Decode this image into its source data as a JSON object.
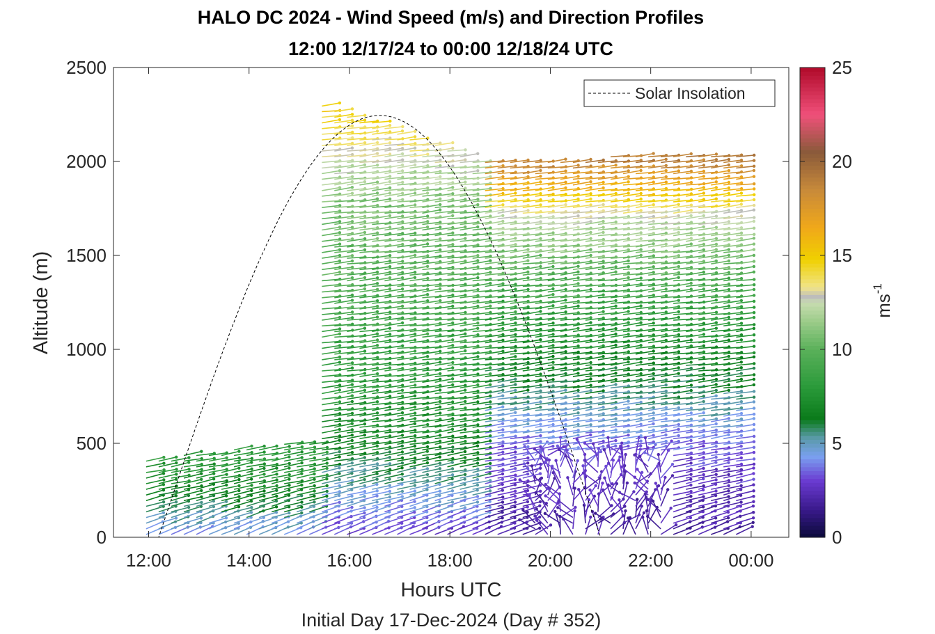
{
  "chart_data": {
    "type": "wind-barb profile",
    "title": "HALO DC 2024 - Wind Speed (m/s) and Direction Profiles",
    "subtitle": "12:00 12/17/24 to 00:00 12/18/24  UTC",
    "xlabel": "Hours UTC",
    "x_note": "Initial Day 17-Dec-2024 (Day # 352)",
    "ylabel": "Altitude (m)",
    "x_ticks": [
      "12:00",
      "14:00",
      "16:00",
      "18:00",
      "20:00",
      "22:00",
      "00:00"
    ],
    "x_tick_hours": [
      12,
      14,
      16,
      18,
      20,
      22,
      24
    ],
    "xlim_hours": [
      11.3,
      24.75
    ],
    "y_ticks": [
      0,
      500,
      1000,
      1500,
      2000,
      2500
    ],
    "ylim": [
      0,
      2500
    ],
    "colorbar": {
      "label": "ms",
      "label_sup": "-1",
      "ticks": [
        0,
        5,
        10,
        15,
        20,
        25
      ],
      "range": [
        0,
        25
      ],
      "stops": [
        {
          "v": 0,
          "c": "#0a0a3a"
        },
        {
          "v": 1.5,
          "c": "#3a1a8c"
        },
        {
          "v": 3,
          "c": "#6a3ad0"
        },
        {
          "v": 4.3,
          "c": "#7aa0f0"
        },
        {
          "v": 5.3,
          "c": "#5a9aa8"
        },
        {
          "v": 6.3,
          "c": "#0a7a1a"
        },
        {
          "v": 8,
          "c": "#2a9a3a"
        },
        {
          "v": 10,
          "c": "#5ab05a"
        },
        {
          "v": 11.5,
          "c": "#9ccc8a"
        },
        {
          "v": 12.5,
          "c": "#c8dcb0"
        },
        {
          "v": 12.8,
          "c": "#bcbcbc"
        },
        {
          "v": 13.3,
          "c": "#f0e48a"
        },
        {
          "v": 14.8,
          "c": "#f0d000"
        },
        {
          "v": 16.5,
          "c": "#f0a81a"
        },
        {
          "v": 18.5,
          "c": "#c88a3a"
        },
        {
          "v": 20.5,
          "c": "#8a5a3a"
        },
        {
          "v": 22.5,
          "c": "#f0507a"
        },
        {
          "v": 25,
          "c": "#b00a2a"
        }
      ]
    },
    "legend": {
      "entries": [
        "Solar Insolation"
      ],
      "location": "top-right"
    },
    "solar_insolation": {
      "start_hour": 12.2,
      "peak_hour": 17.0,
      "end_hour": 21.0,
      "peak_altitude": 2245
    },
    "wind_field": {
      "time_start_hour": 11.95,
      "time_end_hour": 23.75,
      "time_step_hours": 0.25,
      "altitude_step_m": 30,
      "description_regions": [
        {
          "hours": [
            11.95,
            15.3
          ],
          "altitude_top_m": [
            420,
            520
          ],
          "speed_profile_mps": [
            [
              0,
              4.2
            ],
            [
              200,
              6.5
            ],
            [
              400,
              8
            ]
          ]
        },
        {
          "hours": [
            15.3,
            18.6
          ],
          "altitude_top_m": [
            2320,
            2000
          ],
          "speed_profile_mps": [
            [
              0,
              3
            ],
            [
              500,
              7
            ],
            [
              1000,
              8.5
            ],
            [
              1800,
              11
            ],
            [
              2100,
              13.5
            ],
            [
              2300,
              15
            ]
          ]
        },
        {
          "hours": [
            18.6,
            23.75
          ],
          "altitude_top_m": [
            2000,
            2050
          ],
          "speed_profile_mps": [
            [
              0,
              2
            ],
            [
              400,
              3
            ],
            [
              800,
              6
            ],
            [
              1300,
              9
            ],
            [
              1700,
              12.5
            ],
            [
              1850,
              16
            ],
            [
              2000,
              19
            ]
          ]
        }
      ]
    }
  }
}
